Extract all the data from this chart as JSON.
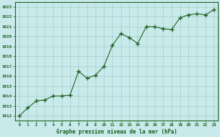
{
  "x": [
    0,
    1,
    2,
    3,
    4,
    5,
    6,
    7,
    8,
    9,
    10,
    11,
    12,
    13,
    14,
    15,
    16,
    17,
    18,
    19,
    20,
    21,
    22,
    23
  ],
  "y": [
    1012.0,
    1012.8,
    1013.5,
    1013.6,
    1014.0,
    1014.0,
    1014.1,
    1016.5,
    1015.8,
    1016.1,
    1017.0,
    1019.1,
    1020.3,
    1019.9,
    1019.3,
    1021.0,
    1021.0,
    1020.8,
    1020.7,
    1021.9,
    1022.2,
    1022.3,
    1022.2,
    1022.7
  ],
  "line_color": "#1a5c1a",
  "marker": "+",
  "marker_size": 5,
  "background_color": "#c8eaea",
  "grid_color": "#a0cccc",
  "ylabel_ticks": [
    1012,
    1013,
    1014,
    1015,
    1016,
    1017,
    1018,
    1019,
    1020,
    1021,
    1022,
    1023
  ],
  "xlabel": "Graphe pression niveau de la mer (hPa)",
  "xlabel_color": "#1a5c1a",
  "tick_label_color": "#1a5c1a",
  "ylim": [
    1011.5,
    1023.5
  ],
  "xlim": [
    -0.5,
    23.5
  ]
}
